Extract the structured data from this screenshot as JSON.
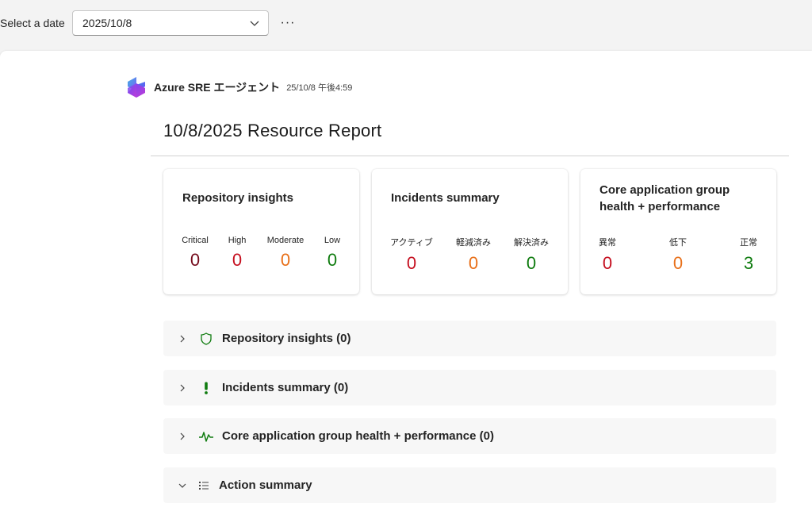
{
  "topbar": {
    "date_label": "Select a date",
    "date_value": "2025/10/8",
    "more_label": "···"
  },
  "header": {
    "agent_name": "Azure SRE エージェント",
    "timestamp": "25/10/8 午後4:59",
    "report_title": "10/8/2025 Resource Report"
  },
  "cards": {
    "repo": {
      "title": "Repository insights",
      "metrics": [
        {
          "label": "Critical",
          "value": "0",
          "color": "#750b1c"
        },
        {
          "label": "High",
          "value": "0",
          "color": "#c50f1f"
        },
        {
          "label": "Moderate",
          "value": "0",
          "color": "#e8701a"
        },
        {
          "label": "Low",
          "value": "0",
          "color": "#107c10"
        }
      ]
    },
    "incidents": {
      "title": "Incidents summary",
      "metrics": [
        {
          "label": "アクティブ",
          "value": "0",
          "color": "#c50f1f"
        },
        {
          "label": "軽減済み",
          "value": "0",
          "color": "#e8701a"
        },
        {
          "label": "解決済み",
          "value": "0",
          "color": "#107c10"
        }
      ]
    },
    "core": {
      "title": "Core application group health + performance",
      "metrics": [
        {
          "label": "異常",
          "value": "0",
          "color": "#c50f1f"
        },
        {
          "label": "低下",
          "value": "0",
          "color": "#e8701a"
        },
        {
          "label": "正常",
          "value": "3",
          "color": "#107c10"
        }
      ]
    }
  },
  "sections": [
    {
      "label": "Repository insights (0)",
      "icon": "shield-icon",
      "expanded": false
    },
    {
      "label": "Incidents summary (0)",
      "icon": "exclamation-icon",
      "expanded": false
    },
    {
      "label": "Core application group health + performance (0)",
      "icon": "pulse-icon",
      "expanded": false
    },
    {
      "label": "Action summary",
      "icon": "task-list-icon",
      "expanded": true
    }
  ],
  "colors": {
    "icon_green": "#107c10"
  }
}
